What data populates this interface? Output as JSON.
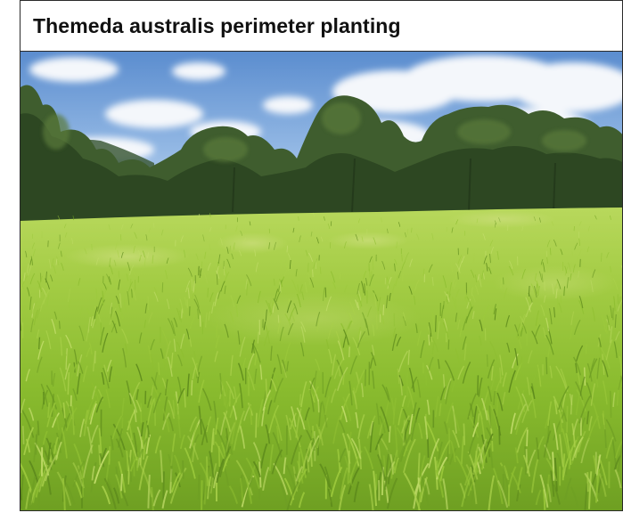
{
  "figure": {
    "caption": "Themeda australis perimeter planting"
  },
  "colors": {
    "sky_top": "#5d8fd0",
    "sky_bottom": "#cfe0f2",
    "tree_dark": "#2e4a26",
    "tree_mid": "#4b6b35",
    "grass_light": "#b9d85a",
    "grass_mid": "#8fbf32",
    "grass_dark": "#5f8f1e"
  }
}
